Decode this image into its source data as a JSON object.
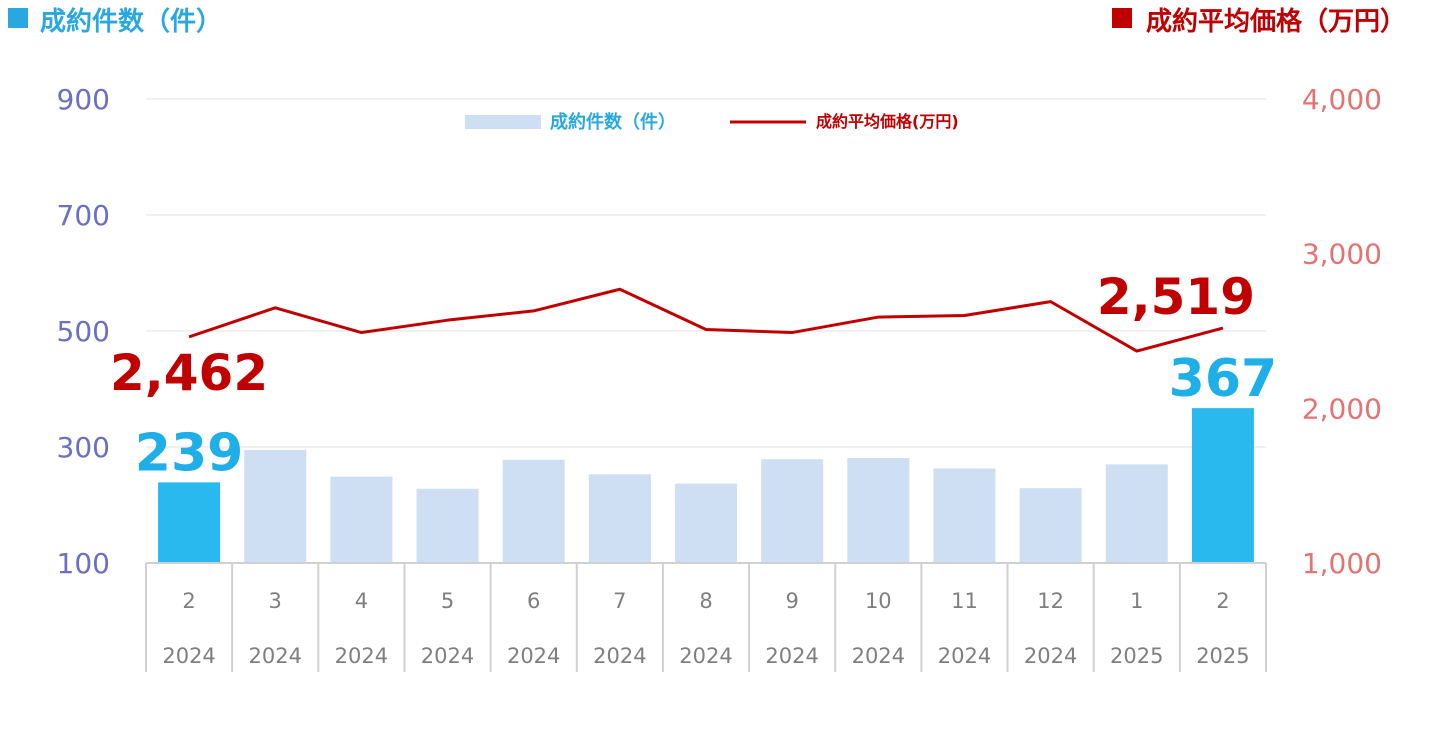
{
  "titles": {
    "left": "成約件数（件）",
    "right": "成約平均価格（万円）"
  },
  "legend": {
    "bar_label": "成約件数（件）",
    "line_label": "成約平均価格(万円)"
  },
  "colors": {
    "bar_normal": "#cfdff3",
    "bar_highlight": "#29b9ee",
    "line": "#c00000",
    "left_title": "#29a8e0",
    "right_title": "#c00000",
    "left_axis": "#6b6fc6",
    "right_axis": "#e57373",
    "count_label": "#1eaee8",
    "price_label": "#c00000",
    "grid": "#e0e0e0"
  },
  "chart_data": {
    "type": "bar",
    "categories": [
      {
        "month": "2",
        "year": "2024"
      },
      {
        "month": "3",
        "year": "2024"
      },
      {
        "month": "4",
        "year": "2024"
      },
      {
        "month": "5",
        "year": "2024"
      },
      {
        "month": "6",
        "year": "2024"
      },
      {
        "month": "7",
        "year": "2024"
      },
      {
        "month": "8",
        "year": "2024"
      },
      {
        "month": "9",
        "year": "2024"
      },
      {
        "month": "10",
        "year": "2024"
      },
      {
        "month": "11",
        "year": "2024"
      },
      {
        "month": "12",
        "year": "2024"
      },
      {
        "month": "1",
        "year": "2025"
      },
      {
        "month": "2",
        "year": "2025"
      }
    ],
    "series": [
      {
        "name": "成約件数（件）",
        "type": "bar",
        "axis": "left",
        "values": [
          239,
          295,
          249,
          228,
          278,
          253,
          237,
          279,
          281,
          263,
          229,
          270,
          367
        ],
        "highlight": [
          0,
          12
        ]
      },
      {
        "name": "成約平均価格(万円)",
        "type": "line",
        "axis": "right",
        "values": [
          2462,
          2650,
          2490,
          2570,
          2630,
          2770,
          2510,
          2490,
          2590,
          2600,
          2690,
          2370,
          2519
        ]
      }
    ],
    "left_axis": {
      "ylim": [
        100,
        900
      ],
      "ticks": [
        "100",
        "300",
        "500",
        "700",
        "900"
      ]
    },
    "right_axis": {
      "ylim": [
        1000,
        4000
      ],
      "ticks": [
        "1,000",
        "2,000",
        "3,000",
        "4,000"
      ]
    },
    "data_labels": [
      {
        "series": 0,
        "index": 0,
        "text": "239"
      },
      {
        "series": 0,
        "index": 12,
        "text": "367"
      },
      {
        "series": 1,
        "index": 0,
        "text": "2,462"
      },
      {
        "series": 1,
        "index": 12,
        "text": "2,519"
      }
    ],
    "legend_position": "top-center",
    "grid": true
  }
}
